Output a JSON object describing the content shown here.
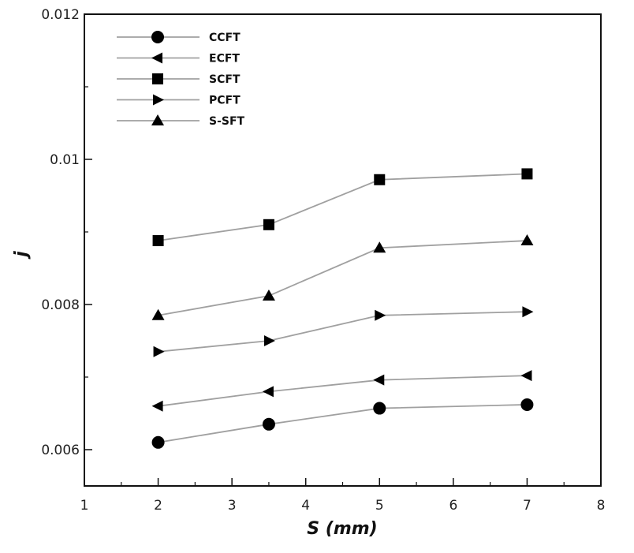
{
  "chart_data": {
    "type": "line",
    "xlabel": "S (mm)",
    "ylabel": "j",
    "xlim": [
      1,
      8
    ],
    "ylim": [
      0.0055,
      0.012
    ],
    "x_ticks": [
      1,
      2,
      3,
      4,
      5,
      6,
      7,
      8
    ],
    "x_tick_labels": [
      "1",
      "2",
      "3",
      "4",
      "5",
      "6",
      "7",
      "8"
    ],
    "y_ticks": [
      0.006,
      0.008,
      0.01,
      0.012
    ],
    "y_tick_labels": [
      "0.006",
      "0.008",
      "0.01",
      "0.012"
    ],
    "grid": false,
    "legend_position": "top-left",
    "line_color": "#a0a0a0",
    "marker_color": "#000000",
    "x": [
      2,
      3.5,
      5,
      7
    ],
    "series": [
      {
        "name": "CCFT",
        "marker": "circle",
        "values": [
          0.0061,
          0.00635,
          0.00657,
          0.00662
        ]
      },
      {
        "name": "ECFT",
        "marker": "triangle-left",
        "values": [
          0.0066,
          0.0068,
          0.00696,
          0.00702
        ]
      },
      {
        "name": "SCFT",
        "marker": "square",
        "values": [
          0.00888,
          0.0091,
          0.00972,
          0.0098
        ]
      },
      {
        "name": "PCFT",
        "marker": "triangle-right",
        "values": [
          0.00735,
          0.0075,
          0.00785,
          0.0079
        ]
      },
      {
        "name": "S-SFT",
        "marker": "triangle-up",
        "values": [
          0.00785,
          0.00812,
          0.00878,
          0.00888
        ]
      }
    ]
  }
}
